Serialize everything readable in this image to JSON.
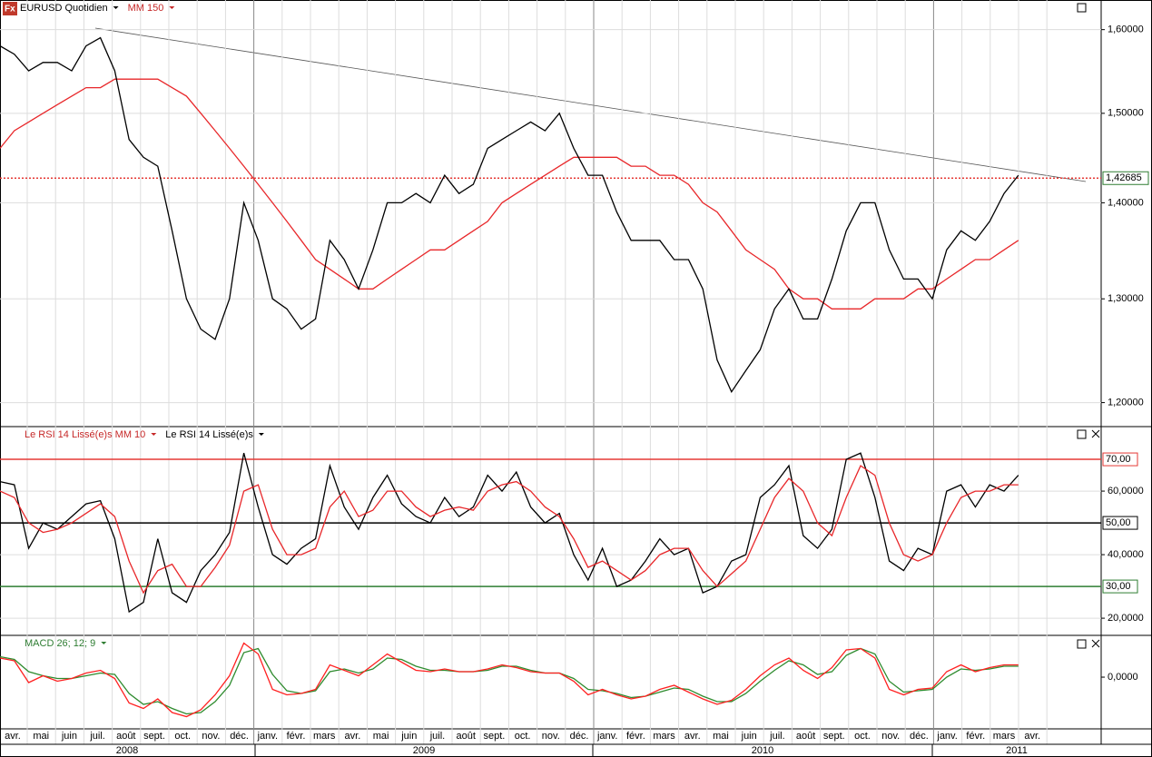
{
  "logo": "Fx",
  "time_axis": {
    "months": [
      "avr.",
      "mai",
      "juin",
      "juil.",
      "août",
      "sept.",
      "oct.",
      "nov.",
      "déc.",
      "janv.",
      "févr.",
      "mars",
      "avr.",
      "mai",
      "juin",
      "juil.",
      "août",
      "sept.",
      "oct.",
      "nov.",
      "déc.",
      "janv.",
      "févr.",
      "mars",
      "avr.",
      "mai",
      "juin",
      "juil.",
      "août",
      "sept.",
      "oct.",
      "nov.",
      "déc.",
      "janv.",
      "févr.",
      "mars",
      "avr."
    ],
    "years": [
      "2008",
      "2009",
      "2010",
      "2011"
    ]
  },
  "chart_data": [
    {
      "type": "line",
      "log_scale": true,
      "grid": true,
      "ylim": [
        1.178,
        1.637
      ],
      "yticks": [
        {
          "value": 1.6,
          "label": "1,60000"
        },
        {
          "value": 1.5,
          "label": "1,50000"
        },
        {
          "value": 1.4,
          "label": "1,40000"
        },
        {
          "value": 1.3,
          "label": "1,30000"
        },
        {
          "value": 1.2,
          "label": "1,20000"
        }
      ],
      "last_price": {
        "value": 1.42685,
        "label": "1,42685",
        "color": "#e53935"
      },
      "series": [
        {
          "name": "EURUSD Quotidien",
          "color": "#000000",
          "values": [
            1.58,
            1.57,
            1.55,
            1.56,
            1.56,
            1.55,
            1.58,
            1.59,
            1.55,
            1.47,
            1.45,
            1.44,
            1.37,
            1.3,
            1.27,
            1.26,
            1.3,
            1.4,
            1.36,
            1.3,
            1.29,
            1.27,
            1.28,
            1.36,
            1.34,
            1.31,
            1.35,
            1.4,
            1.4,
            1.41,
            1.4,
            1.43,
            1.41,
            1.42,
            1.46,
            1.47,
            1.48,
            1.49,
            1.48,
            1.5,
            1.46,
            1.43,
            1.43,
            1.39,
            1.36,
            1.36,
            1.36,
            1.34,
            1.34,
            1.31,
            1.24,
            1.21,
            1.23,
            1.25,
            1.29,
            1.31,
            1.28,
            1.28,
            1.32,
            1.37,
            1.4,
            1.4,
            1.35,
            1.32,
            1.32,
            1.3,
            1.35,
            1.37,
            1.36,
            1.38,
            1.41,
            1.43
          ]
        },
        {
          "name": "MM 150",
          "color": "#e8272a",
          "values": [
            1.46,
            1.48,
            1.49,
            1.5,
            1.51,
            1.52,
            1.53,
            1.53,
            1.54,
            1.54,
            1.54,
            1.54,
            1.53,
            1.52,
            1.5,
            1.48,
            1.46,
            1.44,
            1.42,
            1.4,
            1.38,
            1.36,
            1.34,
            1.33,
            1.32,
            1.31,
            1.31,
            1.32,
            1.33,
            1.34,
            1.35,
            1.35,
            1.36,
            1.37,
            1.38,
            1.4,
            1.41,
            1.42,
            1.43,
            1.44,
            1.45,
            1.45,
            1.45,
            1.45,
            1.44,
            1.44,
            1.43,
            1.43,
            1.42,
            1.4,
            1.39,
            1.37,
            1.35,
            1.34,
            1.33,
            1.31,
            1.3,
            1.3,
            1.29,
            1.29,
            1.29,
            1.3,
            1.3,
            1.3,
            1.31,
            1.31,
            1.32,
            1.33,
            1.34,
            1.34,
            1.35,
            1.36
          ]
        }
      ]
    },
    {
      "type": "line",
      "grid": true,
      "ylim": [
        14.6,
        80.3
      ],
      "yticks": [
        {
          "value": 60,
          "label": "60,0000"
        },
        {
          "value": 40,
          "label": "40,0000"
        },
        {
          "value": 20,
          "label": "20,0000"
        }
      ],
      "levels": [
        {
          "value": 70,
          "label": "70,00",
          "color": "#e53935"
        },
        {
          "value": 50,
          "label": "50,00",
          "color": "#000000"
        },
        {
          "value": 30,
          "label": "30,00",
          "color": "#2e7d32"
        }
      ],
      "series": [
        {
          "name": "Le RSI 14 Lissé(e)s MM 10",
          "color": "#e8272a",
          "values": [
            60,
            58,
            50,
            47,
            48,
            50,
            53,
            56,
            52,
            38,
            28,
            35,
            37,
            30,
            30,
            36,
            43,
            60,
            62,
            48,
            40,
            40,
            42,
            55,
            60,
            52,
            54,
            60,
            60,
            55,
            52,
            54,
            55,
            54,
            60,
            62,
            63,
            60,
            55,
            52,
            45,
            36,
            38,
            35,
            32,
            35,
            40,
            42,
            42,
            35,
            30,
            34,
            38,
            48,
            58,
            64,
            60,
            50,
            46,
            58,
            68,
            65,
            50,
            40,
            38,
            40,
            50,
            58,
            60,
            60,
            62,
            62
          ]
        },
        {
          "name": "Le RSI 14 Lissé(e)s",
          "color": "#000000",
          "values": [
            63,
            62,
            42,
            50,
            48,
            52,
            56,
            57,
            45,
            22,
            25,
            45,
            28,
            25,
            35,
            40,
            47,
            72,
            55,
            40,
            37,
            42,
            45,
            68,
            55,
            48,
            58,
            65,
            56,
            52,
            50,
            58,
            52,
            55,
            65,
            60,
            66,
            55,
            50,
            53,
            40,
            32,
            42,
            30,
            32,
            38,
            45,
            40,
            42,
            28,
            30,
            38,
            40,
            58,
            62,
            68,
            46,
            42,
            48,
            70,
            72,
            58,
            38,
            35,
            42,
            40,
            60,
            62,
            55,
            62,
            60,
            65
          ]
        }
      ]
    },
    {
      "type": "line",
      "title": "MACD 26; 12; 9",
      "title_color": "#2e7d32",
      "ylim": [
        -0.038,
        0.0307
      ],
      "yticks": [
        {
          "value": 0,
          "label": "0,0000"
        }
      ],
      "series": [
        {
          "color": "#ff2020",
          "values": [
            0.014,
            0.012,
            -0.004,
            0.001,
            -0.003,
            -0.001,
            0.003,
            0.005,
            -0.001,
            -0.019,
            -0.023,
            -0.016,
            -0.026,
            -0.029,
            -0.024,
            -0.013,
            0.001,
            0.025,
            0.017,
            -0.009,
            -0.013,
            -0.012,
            -0.009,
            0.009,
            0.005,
            0.001,
            0.009,
            0.017,
            0.011,
            0.005,
            0.004,
            0.006,
            0.004,
            0.004,
            0.006,
            0.009,
            0.007,
            0.004,
            0.003,
            0.003,
            -0.003,
            -0.013,
            -0.009,
            -0.013,
            -0.016,
            -0.014,
            -0.009,
            -0.006,
            -0.011,
            -0.016,
            -0.02,
            -0.017,
            -0.009,
            0.001,
            0.009,
            0.014,
            0.005,
            -0.001,
            0.007,
            0.02,
            0.021,
            0.014,
            -0.009,
            -0.013,
            -0.009,
            -0.008,
            0.004,
            0.009,
            0.004,
            0.007,
            0.009,
            0.009
          ]
        },
        {
          "color": "#2e8b2e",
          "values": [
            0.015,
            0.013,
            0.004,
            0.001,
            -0.001,
            -0.001,
            0.001,
            0.003,
            0.002,
            -0.012,
            -0.02,
            -0.018,
            -0.023,
            -0.027,
            -0.026,
            -0.018,
            -0.006,
            0.018,
            0.021,
            0.002,
            -0.01,
            -0.012,
            -0.01,
            0.004,
            0.006,
            0.003,
            0.006,
            0.014,
            0.013,
            0.008,
            0.005,
            0.005,
            0.004,
            0.004,
            0.005,
            0.008,
            0.008,
            0.005,
            0.003,
            0.003,
            -0.001,
            -0.009,
            -0.01,
            -0.012,
            -0.015,
            -0.014,
            -0.011,
            -0.008,
            -0.009,
            -0.014,
            -0.018,
            -0.018,
            -0.012,
            -0.003,
            0.005,
            0.012,
            0.009,
            0.002,
            0.004,
            0.016,
            0.021,
            0.017,
            -0.003,
            -0.011,
            -0.01,
            -0.009,
            0,
            0.006,
            0.005,
            0.006,
            0.008,
            0.008
          ]
        }
      ]
    }
  ]
}
